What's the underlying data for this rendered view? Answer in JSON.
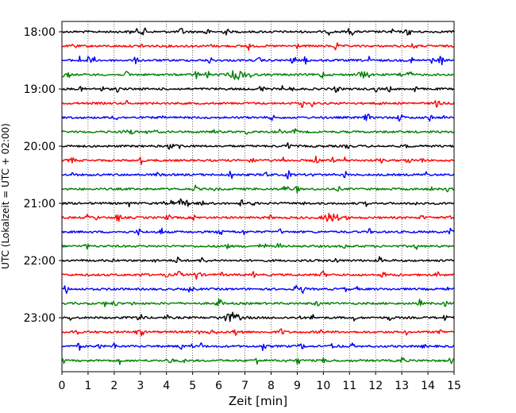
{
  "chart_data": {
    "type": "line",
    "title": "",
    "xlabel": "Zeit  [min]",
    "ylabel": "UTC (Lokalzeit = UTC + 02:00)",
    "xlim": [
      0,
      15
    ],
    "x_ticks": [
      "0",
      "1",
      "2",
      "3",
      "4",
      "5",
      "6",
      "7",
      "8",
      "9",
      "10",
      "11",
      "12",
      "13",
      "14",
      "15"
    ],
    "y_ticks": [
      "18:00",
      "19:00",
      "20:00",
      "21:00",
      "22:00",
      "23:00"
    ],
    "grid": "vertical dotted at each minute",
    "colors": [
      "#000000",
      "#ff0000",
      "#0000ff",
      "#008000"
    ],
    "series": [
      {
        "time": "18:00",
        "color": "#000000"
      },
      {
        "time": "18:15",
        "color": "#ff0000"
      },
      {
        "time": "18:30",
        "color": "#0000ff"
      },
      {
        "time": "18:45",
        "color": "#008000"
      },
      {
        "time": "19:00",
        "color": "#000000"
      },
      {
        "time": "19:15",
        "color": "#ff0000"
      },
      {
        "time": "19:30",
        "color": "#0000ff"
      },
      {
        "time": "19:45",
        "color": "#008000"
      },
      {
        "time": "20:00",
        "color": "#000000"
      },
      {
        "time": "20:15",
        "color": "#ff0000"
      },
      {
        "time": "20:30",
        "color": "#0000ff"
      },
      {
        "time": "20:45",
        "color": "#008000"
      },
      {
        "time": "21:00",
        "color": "#000000"
      },
      {
        "time": "21:15",
        "color": "#ff0000"
      },
      {
        "time": "21:30",
        "color": "#0000ff"
      },
      {
        "time": "21:45",
        "color": "#008000"
      },
      {
        "time": "22:00",
        "color": "#000000"
      },
      {
        "time": "22:15",
        "color": "#ff0000"
      },
      {
        "time": "22:30",
        "color": "#0000ff"
      },
      {
        "time": "22:45",
        "color": "#008000"
      },
      {
        "time": "23:00",
        "color": "#000000"
      },
      {
        "time": "23:15",
        "color": "#ff0000"
      },
      {
        "time": "23:30",
        "color": "#0000ff"
      },
      {
        "time": "23:45",
        "color": "#008000"
      }
    ],
    "notable_events": [
      {
        "time": "18:45",
        "x_min": 6.7
      },
      {
        "time": "21:15",
        "x_min": 10.3
      },
      {
        "time": "23:00",
        "x_min": 6.5
      }
    ]
  }
}
